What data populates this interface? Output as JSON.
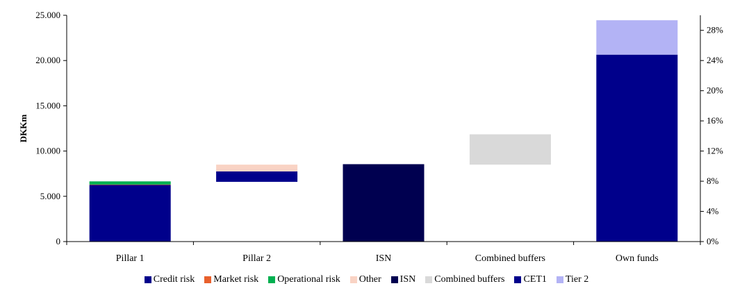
{
  "chart_data": {
    "type": "bar",
    "stacked": true,
    "floating": true,
    "categories": [
      "Pillar 1",
      "Pillar 2",
      "ISN",
      "Combined buffers",
      "Own funds"
    ],
    "ylabel": "DKKm",
    "ylim": [
      0,
      25000
    ],
    "yticks": [
      0,
      5000,
      10000,
      15000,
      20000,
      25000
    ],
    "ytick_labels": [
      "0",
      "5.000",
      "10.000",
      "15.000",
      "20.000",
      "25.000"
    ],
    "y2lim_pct": [
      0,
      30
    ],
    "y2ticks": [
      0,
      4,
      8,
      12,
      16,
      20,
      24,
      28
    ],
    "y2tick_labels": [
      "0%",
      "4%",
      "8%",
      "12%",
      "16%",
      "20%",
      "24%",
      "28%"
    ],
    "grid": false,
    "legend_position": "bottom",
    "series": [
      {
        "name": "Credit risk",
        "color": "#00008B",
        "segments": [
          {
            "category": "Pillar 1",
            "from": 0,
            "to": 6250
          },
          {
            "category": "Pillar 2",
            "from": 6600,
            "to": 7750
          }
        ]
      },
      {
        "name": "Market risk",
        "color": "#E8602C",
        "segments": [
          {
            "category": "Pillar 1",
            "from": 6250,
            "to": 6300
          }
        ]
      },
      {
        "name": "Operational risk",
        "color": "#00B050",
        "segments": [
          {
            "category": "Pillar 1",
            "from": 6300,
            "to": 6650
          }
        ]
      },
      {
        "name": "Other",
        "color": "#F9D3C4",
        "segments": [
          {
            "category": "Pillar 2",
            "from": 7750,
            "to": 8500
          }
        ]
      },
      {
        "name": "ISN",
        "color": "#000050",
        "segments": [
          {
            "category": "ISN",
            "from": 0,
            "to": 8550
          }
        ]
      },
      {
        "name": "Combined buffers",
        "color": "#D9D9D9",
        "segments": [
          {
            "category": "Combined buffers",
            "from": 8500,
            "to": 11850
          }
        ]
      },
      {
        "name": "CET1",
        "color": "#00008B",
        "segments": [
          {
            "category": "Own funds",
            "from": 0,
            "to": 20650
          }
        ]
      },
      {
        "name": "Tier 2",
        "color": "#B3B3F5",
        "segments": [
          {
            "category": "Own funds",
            "from": 20650,
            "to": 24450
          }
        ]
      }
    ]
  }
}
